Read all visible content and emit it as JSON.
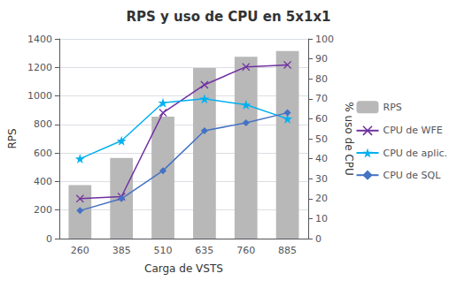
{
  "chart_data": {
    "type": "bar",
    "title": "RPS y uso de CPU en 5x1x1",
    "xlabel": "Carga de VSTS",
    "ylabel": "RPS",
    "y2label": "% uso de CPU",
    "categories": [
      260,
      385,
      510,
      635,
      760,
      885
    ],
    "series": [
      {
        "name": "RPS",
        "type": "bar",
        "color": "#b8b8b8",
        "values": [
          375,
          565,
          855,
          1195,
          1275,
          1315
        ]
      },
      {
        "name": "CPU de WFE",
        "type": "line",
        "color": "#7030A0",
        "marker": "x",
        "axis": "y2",
        "values": [
          20,
          21,
          63,
          77,
          86,
          87
        ]
      },
      {
        "name": "CPU de aplic.",
        "type": "line",
        "color": "#00B0F0",
        "marker": "star",
        "axis": "y2",
        "values": [
          40,
          49,
          68,
          70,
          67,
          60
        ]
      },
      {
        "name": "CPU de SQL",
        "type": "line",
        "color": "#4472C4",
        "marker": "diamond",
        "axis": "y2",
        "values": [
          14,
          20,
          34,
          54,
          58,
          63
        ]
      }
    ],
    "ylim": [
      0,
      1400
    ],
    "yticks": [
      0,
      200,
      400,
      600,
      800,
      1000,
      1200,
      1400
    ],
    "y2lim": [
      0,
      100
    ],
    "y2ticks": [
      0,
      10,
      20,
      30,
      40,
      50,
      60,
      70,
      80,
      90,
      100
    ],
    "grid": true,
    "legend": "right"
  }
}
